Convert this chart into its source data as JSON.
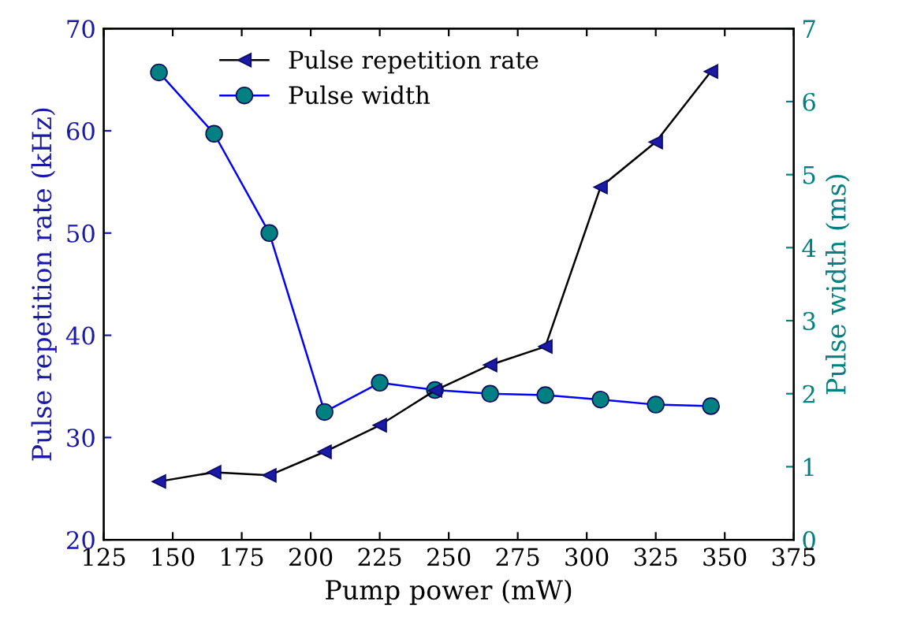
{
  "chart_data": {
    "type": "line",
    "xlabel": "Pump power (mW)",
    "ylabel": "Pulse repetition rate (kHz)",
    "y2label": "Pulse width (ms)",
    "x": [
      145,
      165,
      185,
      205,
      225,
      245,
      265,
      285,
      305,
      325,
      345
    ],
    "series": [
      {
        "name": "Pulse repetition rate",
        "color": "#000000",
        "marker": "triangle",
        "values": [
          25.7,
          26.6,
          26.3,
          28.6,
          31.2,
          34.6,
          37.1,
          38.9,
          54.5,
          58.9,
          65.8
        ]
      },
      {
        "name": "Pulse width",
        "color": "#0000ff",
        "marker": "circle",
        "axis": "y2",
        "values": [
          6.4,
          5.56,
          4.2,
          1.75,
          2.15,
          2.05,
          2.0,
          1.98,
          1.92,
          1.85,
          1.83
        ]
      }
    ],
    "xlim": [
      125,
      375
    ],
    "xticks": [
      125,
      150,
      175,
      200,
      225,
      250,
      275,
      300,
      325,
      350,
      375
    ],
    "ylim": [
      20,
      70
    ],
    "yticks": [
      20,
      30,
      40,
      50,
      60,
      70
    ],
    "y2lim": [
      0,
      7
    ],
    "y2ticks": [
      0,
      1,
      2,
      3,
      4,
      5,
      6,
      7
    ],
    "legend": "top",
    "grid": false
  }
}
